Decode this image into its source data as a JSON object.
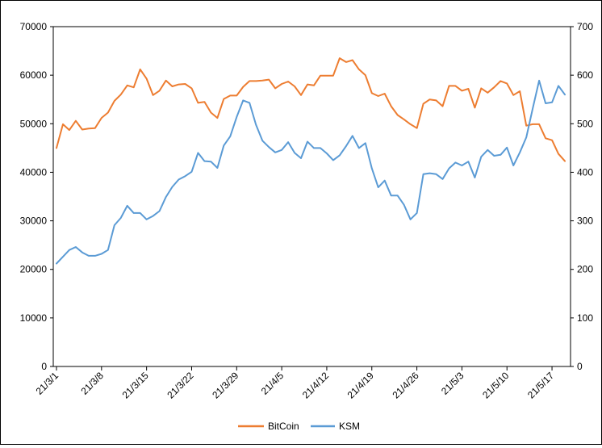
{
  "chart_data": {
    "type": "line",
    "title": "",
    "xlabel": "",
    "ylabel_left": "",
    "ylabel_right": "",
    "ylim_left": [
      0,
      70000
    ],
    "ylim_right": [
      0,
      700
    ],
    "y_ticks_left": [
      "0",
      "10000",
      "20000",
      "30000",
      "40000",
      "50000",
      "60000",
      "70000"
    ],
    "y_ticks_right": [
      "0",
      "100",
      "200",
      "300",
      "400",
      "500",
      "600",
      "700"
    ],
    "x_tick_labels": [
      "21/3/1",
      "21/3/8",
      "21/3/15",
      "21/3/22",
      "21/3/29",
      "21/4/5",
      "21/4/12",
      "21/4/19",
      "21/4/26",
      "21/5/3",
      "21/5/10",
      "21/5/17"
    ],
    "x_tick_dates": [
      "2021-03-01",
      "2021-03-08",
      "2021-03-15",
      "2021-03-22",
      "2021-03-29",
      "2021-04-05",
      "2021-04-12",
      "2021-04-19",
      "2021-04-26",
      "2021-05-03",
      "2021-05-10",
      "2021-05-17"
    ],
    "x_range": [
      "2021-03-01",
      "2021-05-19"
    ],
    "grid": false,
    "legend_position": "bottom",
    "series": [
      {
        "name": "BitCoin",
        "axis": "left",
        "color": "#ED7D31",
        "x": [
          "2021-03-01",
          "2021-03-02",
          "2021-03-03",
          "2021-03-04",
          "2021-03-05",
          "2021-03-06",
          "2021-03-07",
          "2021-03-08",
          "2021-03-09",
          "2021-03-10",
          "2021-03-11",
          "2021-03-12",
          "2021-03-13",
          "2021-03-14",
          "2021-03-15",
          "2021-03-16",
          "2021-03-17",
          "2021-03-18",
          "2021-03-19",
          "2021-03-20",
          "2021-03-21",
          "2021-03-22",
          "2021-03-23",
          "2021-03-24",
          "2021-03-25",
          "2021-03-26",
          "2021-03-27",
          "2021-03-28",
          "2021-03-29",
          "2021-03-30",
          "2021-03-31",
          "2021-04-01",
          "2021-04-02",
          "2021-04-03",
          "2021-04-04",
          "2021-04-05",
          "2021-04-06",
          "2021-04-07",
          "2021-04-08",
          "2021-04-09",
          "2021-04-10",
          "2021-04-11",
          "2021-04-12",
          "2021-04-13",
          "2021-04-14",
          "2021-04-15",
          "2021-04-16",
          "2021-04-17",
          "2021-04-18",
          "2021-04-19",
          "2021-04-20",
          "2021-04-21",
          "2021-04-22",
          "2021-04-23",
          "2021-04-24",
          "2021-04-25",
          "2021-04-26",
          "2021-04-27",
          "2021-04-28",
          "2021-04-29",
          "2021-04-30",
          "2021-05-01",
          "2021-05-02",
          "2021-05-03",
          "2021-05-04",
          "2021-05-05",
          "2021-05-06",
          "2021-05-07",
          "2021-05-08",
          "2021-05-09",
          "2021-05-10",
          "2021-05-11",
          "2021-05-12",
          "2021-05-13",
          "2021-05-14",
          "2021-05-15",
          "2021-05-16",
          "2021-05-17",
          "2021-05-18",
          "2021-05-19"
        ],
        "values": [
          45000,
          49900,
          48700,
          50600,
          48800,
          49000,
          49100,
          51200,
          52300,
          54700,
          56000,
          57900,
          57500,
          61200,
          59300,
          55900,
          56800,
          58900,
          57700,
          58100,
          58200,
          57300,
          54300,
          54500,
          52300,
          51200,
          55100,
          55800,
          55800,
          57600,
          58800,
          58800,
          58900,
          59100,
          57300,
          58200,
          58700,
          57700,
          55900,
          58100,
          57900,
          59900,
          59900,
          59900,
          63500,
          62700,
          63100,
          61200,
          60000,
          56300,
          55700,
          56200,
          53600,
          51800,
          50900,
          49900,
          49100,
          54100,
          55000,
          54800,
          53600,
          57800,
          57800,
          56800,
          57200,
          53300,
          57300,
          56400,
          57500,
          58800,
          58300,
          55900,
          56700,
          49600,
          49900,
          49900,
          47000,
          46600,
          43800,
          42300
        ]
      },
      {
        "name": "KSM",
        "axis": "right",
        "color": "#5B9BD5",
        "x": [
          "2021-03-01",
          "2021-03-02",
          "2021-03-03",
          "2021-03-04",
          "2021-03-05",
          "2021-03-06",
          "2021-03-07",
          "2021-03-08",
          "2021-03-09",
          "2021-03-10",
          "2021-03-11",
          "2021-03-12",
          "2021-03-13",
          "2021-03-14",
          "2021-03-15",
          "2021-03-16",
          "2021-03-17",
          "2021-03-18",
          "2021-03-19",
          "2021-03-20",
          "2021-03-21",
          "2021-03-22",
          "2021-03-23",
          "2021-03-24",
          "2021-03-25",
          "2021-03-26",
          "2021-03-27",
          "2021-03-28",
          "2021-03-29",
          "2021-03-30",
          "2021-03-31",
          "2021-04-01",
          "2021-04-02",
          "2021-04-03",
          "2021-04-04",
          "2021-04-05",
          "2021-04-06",
          "2021-04-07",
          "2021-04-08",
          "2021-04-09",
          "2021-04-10",
          "2021-04-11",
          "2021-04-12",
          "2021-04-13",
          "2021-04-14",
          "2021-04-15",
          "2021-04-16",
          "2021-04-17",
          "2021-04-18",
          "2021-04-19",
          "2021-04-20",
          "2021-04-21",
          "2021-04-22",
          "2021-04-23",
          "2021-04-24",
          "2021-04-25",
          "2021-04-26",
          "2021-04-27",
          "2021-04-28",
          "2021-04-29",
          "2021-04-30",
          "2021-05-01",
          "2021-05-02",
          "2021-05-03",
          "2021-05-04",
          "2021-05-05",
          "2021-05-06",
          "2021-05-07",
          "2021-05-08",
          "2021-05-09",
          "2021-05-10",
          "2021-05-11",
          "2021-05-12",
          "2021-05-13",
          "2021-05-14",
          "2021-05-15",
          "2021-05-16",
          "2021-05-17",
          "2021-05-18",
          "2021-05-19"
        ],
        "values": [
          212,
          226,
          240,
          246,
          235,
          228,
          228,
          232,
          240,
          291,
          306,
          331,
          316,
          316,
          303,
          310,
          320,
          349,
          370,
          385,
          392,
          401,
          440,
          423,
          422,
          409,
          455,
          474,
          514,
          548,
          543,
          498,
          465,
          452,
          441,
          446,
          462,
          440,
          429,
          463,
          450,
          450,
          439,
          425,
          435,
          454,
          475,
          450,
          460,
          408,
          369,
          383,
          352,
          352,
          333,
          303,
          316,
          396,
          398,
          396,
          386,
          408,
          420,
          414,
          422,
          389,
          432,
          446,
          434,
          436,
          451,
          414,
          441,
          472,
          531,
          589,
          542,
          544,
          578,
          560
        ]
      }
    ]
  }
}
